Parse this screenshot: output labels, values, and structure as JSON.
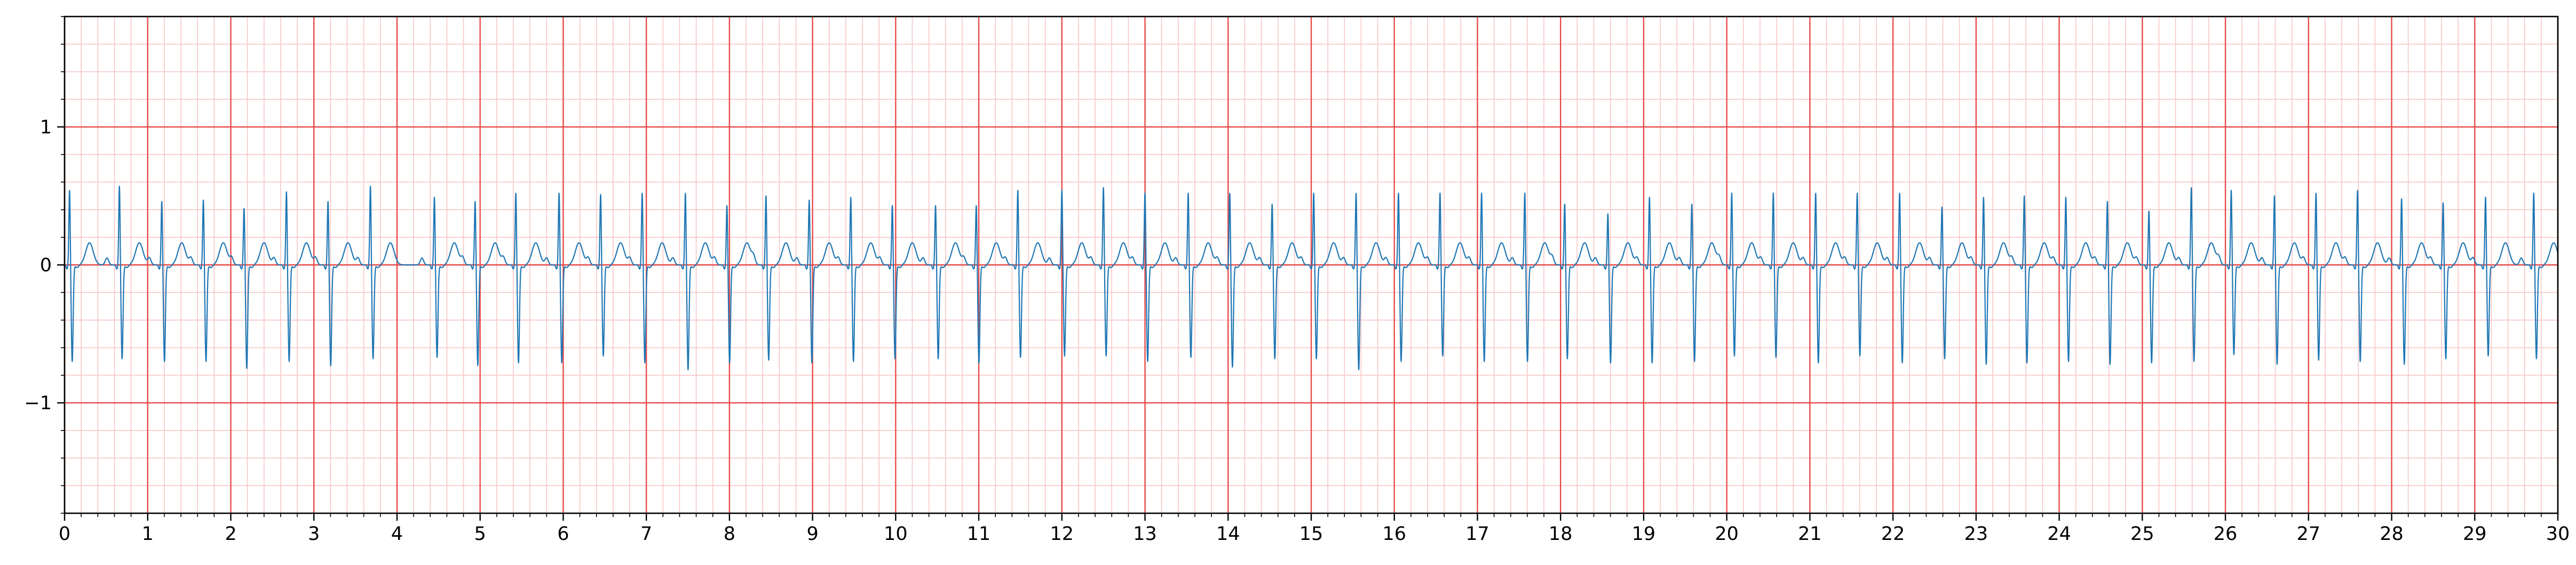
{
  "chart_data": {
    "type": "line",
    "title": "",
    "xlabel": "",
    "ylabel": "",
    "xlim": [
      0,
      30
    ],
    "ylim": [
      -1.8,
      1.8
    ],
    "x_ticks": [
      "0",
      "1",
      "2",
      "3",
      "4",
      "5",
      "6",
      "7",
      "8",
      "9",
      "10",
      "11",
      "12",
      "13",
      "14",
      "15",
      "16",
      "17",
      "18",
      "19",
      "20",
      "21",
      "22",
      "23",
      "24",
      "25",
      "26",
      "27",
      "28",
      "29",
      "30"
    ],
    "y_ticks": [
      {
        "value": 1,
        "label": "1"
      },
      {
        "value": 0,
        "label": "0"
      },
      {
        "value": -1,
        "label": "−1"
      }
    ],
    "grid": true,
    "grid_major": {
      "x": 1,
      "y": 1
    },
    "grid_minor": {
      "x": 0.2,
      "y": 0.2
    },
    "colors": {
      "signal": "#1f77b4",
      "major_grid": "#e84a4a",
      "minor_grid": "#f8c6c6",
      "axes": "#000000"
    },
    "series": [
      {
        "sampling_interval_s": 0.02,
        "beat_times_s": [
          0.06,
          0.66,
          1.17,
          1.67,
          2.16,
          2.67,
          3.17,
          3.68,
          4.45,
          4.94,
          5.43,
          5.95,
          6.45,
          6.95,
          7.47,
          7.97,
          8.44,
          8.96,
          9.46,
          9.96,
          10.48,
          10.97,
          11.47,
          12.0,
          12.5,
          13.0,
          13.52,
          14.02,
          14.53,
          15.03,
          15.54,
          16.05,
          16.55,
          17.05,
          17.57,
          18.05,
          18.57,
          19.07,
          19.58,
          20.06,
          20.56,
          21.07,
          21.57,
          22.08,
          22.59,
          23.09,
          23.58,
          24.08,
          24.58,
          25.08,
          25.59,
          26.07,
          26.59,
          27.09,
          27.59,
          28.12,
          28.62,
          29.13,
          29.71
        ],
        "r_peak_mV": [
          0.55,
          0.58,
          0.47,
          0.48,
          0.42,
          0.54,
          0.47,
          0.58,
          0.5,
          0.47,
          0.53,
          0.53,
          0.52,
          0.53,
          0.53,
          0.44,
          0.51,
          0.48,
          0.5,
          0.44,
          0.44,
          0.44,
          0.55,
          0.55,
          0.57,
          0.53,
          0.53,
          0.53,
          0.45,
          0.53,
          0.53,
          0.53,
          0.53,
          0.53,
          0.53,
          0.45,
          0.38,
          0.5,
          0.45,
          0.53,
          0.53,
          0.53,
          0.53,
          0.53,
          0.43,
          0.5,
          0.51,
          0.5,
          0.47,
          0.4,
          0.57,
          0.55,
          0.51,
          0.53,
          0.55,
          0.49,
          0.46,
          0.5,
          0.53
        ],
        "s_trough_mV": [
          -0.7,
          -0.68,
          -0.7,
          -0.7,
          -0.75,
          -0.7,
          -0.73,
          -0.68,
          -0.67,
          -0.73,
          -0.71,
          -0.71,
          -0.66,
          -0.71,
          -0.76,
          -0.71,
          -0.69,
          -0.71,
          -0.7,
          -0.68,
          -0.68,
          -0.71,
          -0.67,
          -0.66,
          -0.66,
          -0.7,
          -0.67,
          -0.74,
          -0.68,
          -0.68,
          -0.76,
          -0.7,
          -0.66,
          -0.7,
          -0.7,
          -0.68,
          -0.71,
          -0.71,
          -0.7,
          -0.66,
          -0.67,
          -0.71,
          -0.66,
          -0.71,
          -0.68,
          -0.72,
          -0.71,
          -0.7,
          -0.72,
          -0.71,
          -0.7,
          -0.65,
          -0.72,
          -0.69,
          -0.7,
          -0.72,
          -0.68,
          -0.66,
          -0.68
        ],
        "t_wave_peak_mV": 0.16,
        "q_dip_mV": -0.03
      }
    ]
  }
}
